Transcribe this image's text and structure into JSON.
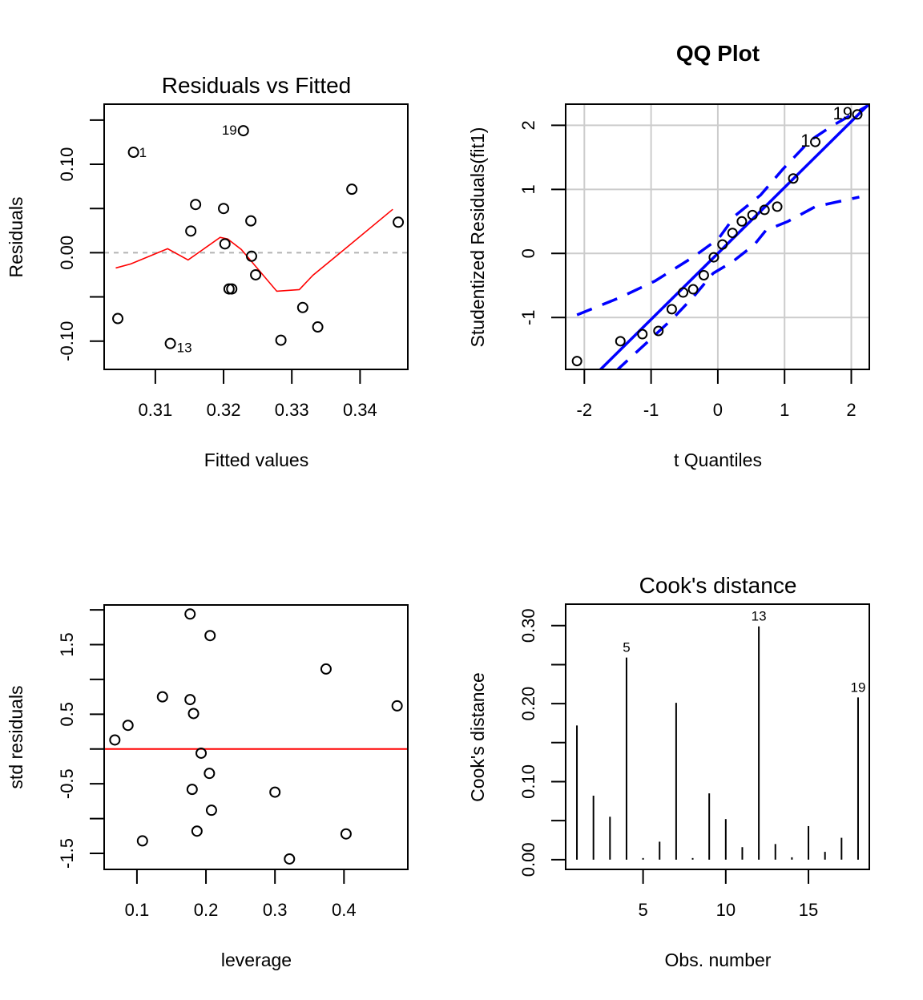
{
  "chart_data": [
    {
      "id": "resid_fitted",
      "type": "scatter",
      "title": "Residuals vs Fitted",
      "xlabel": "Fitted values",
      "ylabel": "Residuals",
      "xlim": [
        0.3025,
        0.347
      ],
      "ylim": [
        -0.132,
        0.168
      ],
      "xticks": [
        0.31,
        0.32,
        0.33,
        0.34
      ],
      "xtick_labels": [
        "0.31",
        "0.32",
        "0.33",
        "0.34"
      ],
      "yticks": [
        -0.1,
        -0.05,
        0.0,
        0.05,
        0.1,
        0.15
      ],
      "ytick_labels": [
        "-0.10",
        "",
        "0.00",
        "",
        "0.10",
        ""
      ],
      "reference_line": {
        "y": 0,
        "style": "dashed",
        "color": "#b3b3b3"
      },
      "points": [
        {
          "x": 0.3045,
          "y": -0.0745,
          "label": ""
        },
        {
          "x": 0.3068,
          "y": 0.1136,
          "label": "1"
        },
        {
          "x": 0.3122,
          "y": -0.1027,
          "label": "13"
        },
        {
          "x": 0.3152,
          "y": 0.0245,
          "label": ""
        },
        {
          "x": 0.3159,
          "y": 0.0545,
          "label": ""
        },
        {
          "x": 0.32,
          "y": 0.05,
          "label": ""
        },
        {
          "x": 0.3202,
          "y": 0.01,
          "label": ""
        },
        {
          "x": 0.3208,
          "y": -0.041,
          "label": ""
        },
        {
          "x": 0.3212,
          "y": -0.041,
          "label": ""
        },
        {
          "x": 0.3229,
          "y": 0.138,
          "label": "19"
        },
        {
          "x": 0.324,
          "y": 0.036,
          "label": ""
        },
        {
          "x": 0.3241,
          "y": -0.004,
          "label": ""
        },
        {
          "x": 0.3247,
          "y": -0.025,
          "label": ""
        },
        {
          "x": 0.3284,
          "y": -0.099,
          "label": ""
        },
        {
          "x": 0.3316,
          "y": -0.062,
          "label": ""
        },
        {
          "x": 0.3338,
          "y": -0.084,
          "label": ""
        },
        {
          "x": 0.3388,
          "y": 0.0718,
          "label": ""
        },
        {
          "x": 0.3456,
          "y": 0.0345,
          "label": ""
        }
      ],
      "smoother": {
        "color": "#ff0000",
        "x": [
          0.3042,
          0.3064,
          0.3118,
          0.3148,
          0.3195,
          0.3206,
          0.3226,
          0.3278,
          0.3311,
          0.3331,
          0.3374,
          0.3448
        ],
        "y": [
          -0.0173,
          -0.0127,
          0.0045,
          -0.0082,
          0.0173,
          0.0155,
          0.0036,
          -0.0436,
          -0.0418,
          -0.0255,
          0.0018,
          0.0491
        ]
      }
    },
    {
      "id": "qq",
      "type": "scatter",
      "title": "QQ Plot",
      "xlabel": "t Quantiles",
      "ylabel": "Studentized Residuals(fit1)",
      "xlim": [
        -2.28,
        2.27
      ],
      "ylim": [
        -1.81,
        2.33
      ],
      "grid": true,
      "xticks": [
        -2,
        -1,
        0,
        1,
        2
      ],
      "xtick_labels": [
        "-2",
        "-1",
        "0",
        "1",
        "2"
      ],
      "yticks": [
        -1,
        0,
        1,
        2
      ],
      "ytick_labels": [
        "-1",
        "0",
        "1",
        "2"
      ],
      "points": [
        {
          "x": -2.11,
          "y": -1.68,
          "label": ""
        },
        {
          "x": -1.46,
          "y": -1.37,
          "label": ""
        },
        {
          "x": -1.13,
          "y": -1.26,
          "label": ""
        },
        {
          "x": -0.89,
          "y": -1.21,
          "label": ""
        },
        {
          "x": -0.69,
          "y": -0.87,
          "label": ""
        },
        {
          "x": -0.52,
          "y": -0.61,
          "label": ""
        },
        {
          "x": -0.37,
          "y": -0.56,
          "label": ""
        },
        {
          "x": -0.21,
          "y": -0.34,
          "label": ""
        },
        {
          "x": -0.06,
          "y": -0.06,
          "label": ""
        },
        {
          "x": 0.07,
          "y": 0.14,
          "label": ""
        },
        {
          "x": 0.22,
          "y": 0.32,
          "label": ""
        },
        {
          "x": 0.36,
          "y": 0.5,
          "label": ""
        },
        {
          "x": 0.52,
          "y": 0.6,
          "label": ""
        },
        {
          "x": 0.7,
          "y": 0.68,
          "label": ""
        },
        {
          "x": 0.89,
          "y": 0.73,
          "label": ""
        },
        {
          "x": 1.13,
          "y": 1.17,
          "label": ""
        },
        {
          "x": 1.46,
          "y": 1.74,
          "label": "1"
        },
        {
          "x": 2.09,
          "y": 2.17,
          "label": "19"
        }
      ],
      "reference_line": {
        "intercept": 0.0,
        "slope": 1.03,
        "color": "#0000ff"
      },
      "envelope": {
        "color": "#0000ff",
        "upper": {
          "x": [
            -2.11,
            -1.47,
            -0.94,
            -0.36,
            0.01,
            0.26,
            0.64,
            0.97,
            1.38,
            1.71,
            2.27
          ],
          "y": [
            -0.96,
            -0.69,
            -0.43,
            -0.05,
            0.23,
            0.59,
            0.91,
            1.31,
            1.76,
            1.99,
            2.32
          ]
        },
        "lower": {
          "x": [
            -1.53,
            -1.02,
            -0.65,
            -0.36,
            -0.07,
            0.22,
            0.55,
            0.72,
            1.05,
            1.46,
            2.12
          ],
          "y": [
            -1.84,
            -1.35,
            -0.99,
            -0.67,
            -0.31,
            -0.13,
            0.14,
            0.36,
            0.5,
            0.73,
            0.88
          ]
        }
      }
    },
    {
      "id": "leverage",
      "type": "scatter",
      "title": "",
      "xlabel": "leverage",
      "ylabel": "std residuals",
      "xlim": [
        0.0525,
        0.4925
      ],
      "ylim": [
        -1.73,
        2.07
      ],
      "xticks": [
        0.1,
        0.2,
        0.3,
        0.4
      ],
      "xtick_labels": [
        "0.1",
        "0.2",
        "0.3",
        "0.4"
      ],
      "yticks": [
        -1.5,
        -1.0,
        -0.5,
        0.0,
        0.5,
        1.0,
        1.5,
        2.0
      ],
      "ytick_labels": [
        "-1.5",
        "",
        "-0.5",
        "",
        "0.5",
        "",
        "1.5",
        ""
      ],
      "reference_line": {
        "y": 0,
        "color": "#ff0000"
      },
      "points": [
        {
          "x": 0.068,
          "y": 0.13
        },
        {
          "x": 0.087,
          "y": 0.34
        },
        {
          "x": 0.108,
          "y": -1.32
        },
        {
          "x": 0.137,
          "y": 0.75
        },
        {
          "x": 0.177,
          "y": 1.94
        },
        {
          "x": 0.177,
          "y": 0.71
        },
        {
          "x": 0.182,
          "y": 0.51
        },
        {
          "x": 0.18,
          "y": -0.58
        },
        {
          "x": 0.187,
          "y": -1.18
        },
        {
          "x": 0.193,
          "y": -0.06
        },
        {
          "x": 0.206,
          "y": 1.63
        },
        {
          "x": 0.205,
          "y": -0.35
        },
        {
          "x": 0.208,
          "y": -0.88
        },
        {
          "x": 0.3,
          "y": -0.62
        },
        {
          "x": 0.321,
          "y": -1.58
        },
        {
          "x": 0.374,
          "y": 1.15
        },
        {
          "x": 0.403,
          "y": -1.22
        },
        {
          "x": 0.477,
          "y": 0.62
        }
      ]
    },
    {
      "id": "cooks",
      "type": "bar",
      "title": "Cook's distance",
      "xlabel": "Obs. number",
      "ylabel": "Cook's distance",
      "xlim": [
        0.32,
        18.68
      ],
      "ylim": [
        -0.0125,
        0.3275
      ],
      "xticks": [
        5,
        10,
        15
      ],
      "xtick_labels": [
        "5",
        "10",
        "15"
      ],
      "yticks": [
        0.0,
        0.05,
        0.1,
        0.15,
        0.2,
        0.25,
        0.3
      ],
      "ytick_labels": [
        "0.00",
        "",
        "0.10",
        "",
        "0.20",
        "",
        "0.30"
      ],
      "categories": [
        1,
        2,
        3,
        4,
        5,
        6,
        7,
        8,
        9,
        10,
        11,
        12,
        13,
        14,
        15,
        16,
        17,
        18
      ],
      "values": [
        0.172,
        0.082,
        0.055,
        0.259,
        0.001,
        0.023,
        0.201,
        0.001,
        0.085,
        0.052,
        0.016,
        0.299,
        0.02,
        0.003,
        0.043,
        0.01,
        0.028,
        0.208
      ],
      "bar_labels": [
        {
          "index": 4,
          "label": "5"
        },
        {
          "index": 12,
          "label": "13"
        },
        {
          "index": 18,
          "label": "19"
        }
      ]
    }
  ]
}
